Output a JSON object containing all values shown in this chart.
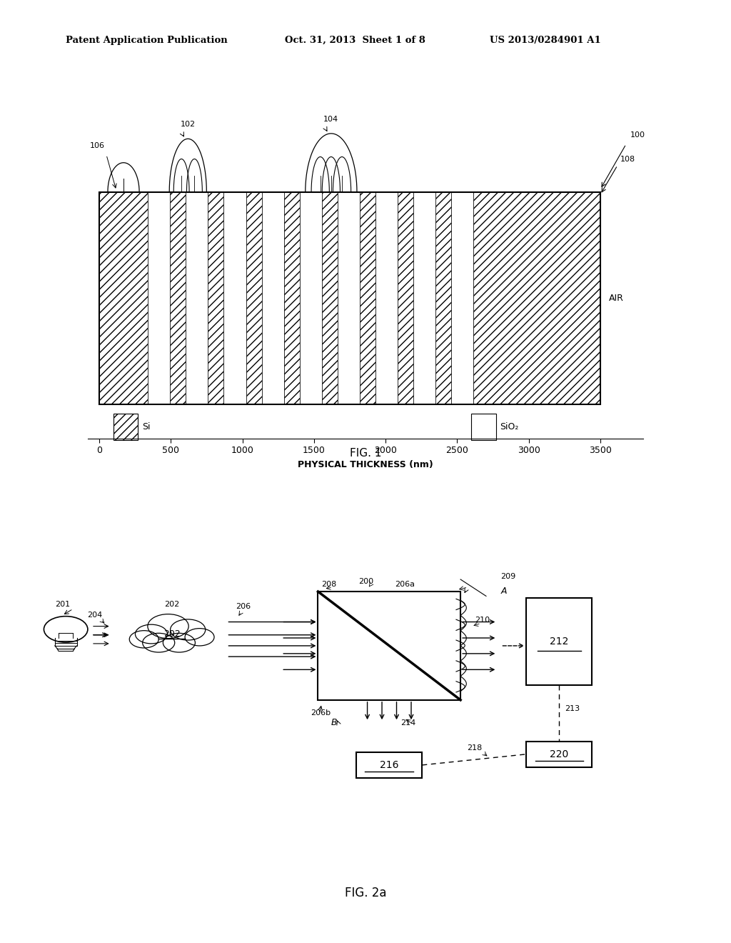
{
  "header_left": "Patent Application Publication",
  "header_mid": "Oct. 31, 2013  Sheet 1 of 8",
  "header_right": "US 2013/0284901 A1",
  "fig1_label": "FIG. 1",
  "fig2_label": "FIG. 2a",
  "fig1_xlabel": "PHYSICAL THICKNESS (nm)",
  "fig1_xticks": [
    0,
    500,
    1000,
    1500,
    2000,
    2500,
    3000,
    3500
  ],
  "fig1_air_label": "AIR",
  "legend_si": "Si",
  "legend_sio2": "SiO₂",
  "background_color": "#ffffff"
}
